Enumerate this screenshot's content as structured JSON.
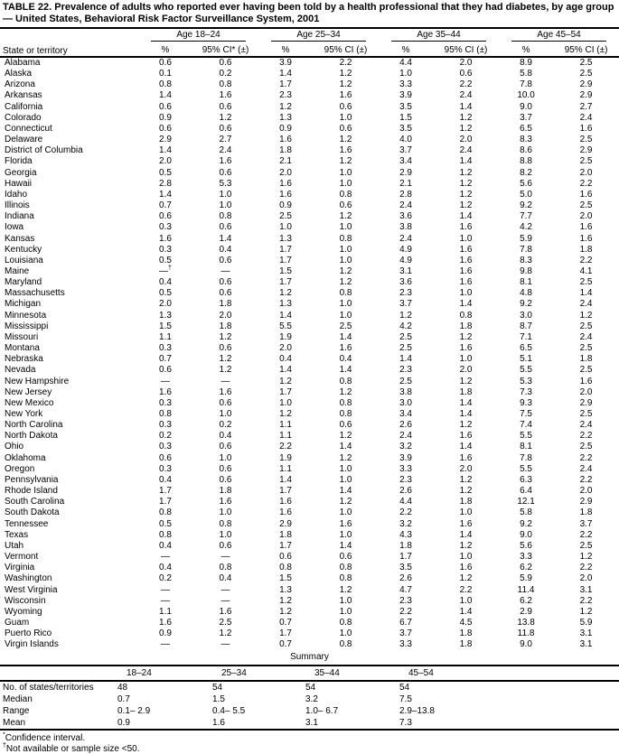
{
  "title": "TABLE 22. Prevalence of adults who reported ever having been told by a health professional that they had diabetes, by age group — United States, Behavioral Risk Factor Surveillance System, 2001",
  "table": {
    "row_header_label": "State or territory",
    "age_groups": [
      {
        "label": "Age 18–24",
        "pct_header": "%",
        "ci_header": "95% CI* (±)"
      },
      {
        "label": "Age 25–34",
        "pct_header": "%",
        "ci_header": "95% CI (±)"
      },
      {
        "label": "Age 35–44",
        "pct_header": "%",
        "ci_header": "95% CI (±)"
      },
      {
        "label": "Age 45–54",
        "pct_header": "%",
        "ci_header": "95% CI (±)"
      }
    ],
    "rows": [
      {
        "state": "Alabama",
        "values": [
          "0.6",
          "0.6",
          "3.9",
          "2.2",
          "4.4",
          "2.0",
          "8.9",
          "2.5"
        ]
      },
      {
        "state": "Alaska",
        "values": [
          "0.1",
          "0.2",
          "1.4",
          "1.2",
          "1.0",
          "0.6",
          "5.8",
          "2.5"
        ]
      },
      {
        "state": "Arizona",
        "values": [
          "0.8",
          "0.8",
          "1.7",
          "1.2",
          "3.3",
          "2.2",
          "7.8",
          "2.9"
        ]
      },
      {
        "state": "Arkansas",
        "values": [
          "1.4",
          "1.6",
          "2.3",
          "1.6",
          "3.9",
          "2.4",
          "10.0",
          "2.9"
        ]
      },
      {
        "state": "California",
        "values": [
          "0.6",
          "0.6",
          "1.2",
          "0.6",
          "3.5",
          "1.4",
          "9.0",
          "2.7"
        ]
      },
      {
        "state": "Colorado",
        "values": [
          "0.9",
          "1.2",
          "1.3",
          "1.0",
          "1.5",
          "1.2",
          "3.7",
          "2.4"
        ]
      },
      {
        "state": "Connecticut",
        "values": [
          "0.6",
          "0.6",
          "0.9",
          "0.6",
          "3.5",
          "1.2",
          "6.5",
          "1.6"
        ]
      },
      {
        "state": "Delaware",
        "values": [
          "2.9",
          "2.7",
          "1.6",
          "1.2",
          "4.0",
          "2.0",
          "8.3",
          "2.5"
        ]
      },
      {
        "state": "District of Columbia",
        "values": [
          "1.4",
          "2.4",
          "1.8",
          "1.6",
          "3.7",
          "2.4",
          "8.6",
          "2.9"
        ]
      },
      {
        "state": "Florida",
        "values": [
          "2.0",
          "1.6",
          "2.1",
          "1.2",
          "3.4",
          "1.4",
          "8.8",
          "2.5"
        ]
      },
      {
        "state": "Georgia",
        "values": [
          "0.5",
          "0.6",
          "2.0",
          "1.0",
          "2.9",
          "1.2",
          "8.2",
          "2.0"
        ]
      },
      {
        "state": "Hawaii",
        "values": [
          "2.8",
          "5.3",
          "1.6",
          "1.0",
          "2.1",
          "1.2",
          "5.6",
          "2.2"
        ]
      },
      {
        "state": "Idaho",
        "values": [
          "1.4",
          "1.0",
          "1.6",
          "0.8",
          "2.8",
          "1.2",
          "5.0",
          "1.6"
        ]
      },
      {
        "state": "Illinois",
        "values": [
          "0.7",
          "1.0",
          "0.9",
          "0.6",
          "2.4",
          "1.2",
          "9.2",
          "2.5"
        ]
      },
      {
        "state": "Indiana",
        "values": [
          "0.6",
          "0.8",
          "2.5",
          "1.2",
          "3.6",
          "1.4",
          "7.7",
          "2.0"
        ]
      },
      {
        "state": "Iowa",
        "values": [
          "0.3",
          "0.6",
          "1.0",
          "1.0",
          "3.8",
          "1.6",
          "4.2",
          "1.6"
        ]
      },
      {
        "state": "Kansas",
        "values": [
          "1.6",
          "1.4",
          "1.3",
          "0.8",
          "2.4",
          "1.0",
          "5.9",
          "1.6"
        ]
      },
      {
        "state": "Kentucky",
        "values": [
          "0.3",
          "0.4",
          "1.7",
          "1.0",
          "4.9",
          "1.6",
          "7.8",
          "1.8"
        ]
      },
      {
        "state": "Louisiana",
        "values": [
          "0.5",
          "0.6",
          "1.7",
          "1.0",
          "4.9",
          "1.6",
          "8.3",
          "2.2"
        ]
      },
      {
        "state": "Maine",
        "values": [
          "—†",
          "—",
          "1.5",
          "1.2",
          "3.1",
          "1.6",
          "9.8",
          "4.1"
        ]
      },
      {
        "state": "Maryland",
        "values": [
          "0.4",
          "0.6",
          "1.7",
          "1.2",
          "3.6",
          "1.6",
          "8.1",
          "2.5"
        ]
      },
      {
        "state": "Massachusetts",
        "values": [
          "0.5",
          "0.6",
          "1.2",
          "0.8",
          "2.3",
          "1.0",
          "4.8",
          "1.4"
        ]
      },
      {
        "state": "Michigan",
        "values": [
          "2.0",
          "1.8",
          "1.3",
          "1.0",
          "3.7",
          "1.4",
          "9.2",
          "2.4"
        ]
      },
      {
        "state": "Minnesota",
        "values": [
          "1.3",
          "2.0",
          "1.4",
          "1.0",
          "1.2",
          "0.8",
          "3.0",
          "1.2"
        ]
      },
      {
        "state": "Mississippi",
        "values": [
          "1.5",
          "1.8",
          "5.5",
          "2.5",
          "4.2",
          "1.8",
          "8.7",
          "2.5"
        ]
      },
      {
        "state": "Missouri",
        "values": [
          "1.1",
          "1.2",
          "1.9",
          "1.4",
          "2.5",
          "1.2",
          "7.1",
          "2.4"
        ]
      },
      {
        "state": "Montana",
        "values": [
          "0.3",
          "0.6",
          "2.0",
          "1.6",
          "2.5",
          "1.6",
          "6.5",
          "2.5"
        ]
      },
      {
        "state": "Nebraska",
        "values": [
          "0.7",
          "1.2",
          "0.4",
          "0.4",
          "1.4",
          "1.0",
          "5.1",
          "1.8"
        ]
      },
      {
        "state": "Nevada",
        "values": [
          "0.6",
          "1.2",
          "1.4",
          "1.4",
          "2.3",
          "2.0",
          "5.5",
          "2.5"
        ]
      },
      {
        "state": "New Hampshire",
        "values": [
          "—",
          "—",
          "1.2",
          "0.8",
          "2.5",
          "1.2",
          "5.3",
          "1.6"
        ]
      },
      {
        "state": "New Jersey",
        "values": [
          "1.6",
          "1.6",
          "1.7",
          "1.2",
          "3.8",
          "1.8",
          "7.3",
          "2.0"
        ]
      },
      {
        "state": "New Mexico",
        "values": [
          "0.3",
          "0.6",
          "1.0",
          "0.8",
          "3.0",
          "1.4",
          "9.3",
          "2.9"
        ]
      },
      {
        "state": "New York",
        "values": [
          "0.8",
          "1.0",
          "1.2",
          "0.8",
          "3.4",
          "1.4",
          "7.5",
          "2.5"
        ]
      },
      {
        "state": "North Carolina",
        "values": [
          "0.3",
          "0.2",
          "1.1",
          "0.6",
          "2.6",
          "1.2",
          "7.4",
          "2.4"
        ]
      },
      {
        "state": "North Dakota",
        "values": [
          "0.2",
          "0.4",
          "1.1",
          "1.2",
          "2.4",
          "1.6",
          "5.5",
          "2.2"
        ]
      },
      {
        "state": "Ohio",
        "values": [
          "0.3",
          "0.6",
          "2.2",
          "1.4",
          "3.2",
          "1.4",
          "8.1",
          "2.5"
        ]
      },
      {
        "state": "Oklahoma",
        "values": [
          "0.6",
          "1.0",
          "1.9",
          "1.2",
          "3.9",
          "1.6",
          "7.8",
          "2.2"
        ]
      },
      {
        "state": "Oregon",
        "values": [
          "0.3",
          "0.6",
          "1.1",
          "1.0",
          "3.3",
          "2.0",
          "5.5",
          "2.4"
        ]
      },
      {
        "state": "Pennsylvania",
        "values": [
          "0.4",
          "0.6",
          "1.4",
          "1.0",
          "2.3",
          "1.2",
          "6.3",
          "2.2"
        ]
      },
      {
        "state": "Rhode Island",
        "values": [
          "1.7",
          "1.8",
          "1.7",
          "1.4",
          "2.6",
          "1.2",
          "6.4",
          "2.0"
        ]
      },
      {
        "state": "South Carolina",
        "values": [
          "1.7",
          "1.6",
          "1.6",
          "1.2",
          "4.4",
          "1.8",
          "12.1",
          "2.9"
        ]
      },
      {
        "state": "South Dakota",
        "values": [
          "0.8",
          "1.0",
          "1.6",
          "1.0",
          "2.2",
          "1.0",
          "5.8",
          "1.8"
        ]
      },
      {
        "state": "Tennessee",
        "values": [
          "0.5",
          "0.8",
          "2.9",
          "1.6",
          "3.2",
          "1.6",
          "9.2",
          "3.7"
        ]
      },
      {
        "state": "Texas",
        "values": [
          "0.8",
          "1.0",
          "1.8",
          "1.0",
          "4.3",
          "1.4",
          "9.0",
          "2.2"
        ]
      },
      {
        "state": "Utah",
        "values": [
          "0.4",
          "0.6",
          "1.7",
          "1.4",
          "1.8",
          "1.2",
          "5.6",
          "2.5"
        ]
      },
      {
        "state": "Vermont",
        "values": [
          "—",
          "—",
          "0.6",
          "0.6",
          "1.7",
          "1.0",
          "3.3",
          "1.2"
        ]
      },
      {
        "state": "Virginia",
        "values": [
          "0.4",
          "0.8",
          "0.8",
          "0.8",
          "3.5",
          "1.6",
          "6.2",
          "2.2"
        ]
      },
      {
        "state": "Washington",
        "values": [
          "0.2",
          "0.4",
          "1.5",
          "0.8",
          "2.6",
          "1.2",
          "5.9",
          "2.0"
        ]
      },
      {
        "state": "West Virginia",
        "values": [
          "—",
          "—",
          "1.3",
          "1.2",
          "4.7",
          "2.2",
          "11.4",
          "3.1"
        ]
      },
      {
        "state": "Wisconsin",
        "values": [
          "—",
          "—",
          "1.2",
          "1.0",
          "2.3",
          "1.0",
          "6.2",
          "2.2"
        ]
      },
      {
        "state": "Wyoming",
        "values": [
          "1.1",
          "1.6",
          "1.2",
          "1.0",
          "2.2",
          "1.4",
          "2.9",
          "1.2"
        ]
      },
      {
        "state": "Guam",
        "values": [
          "1.6",
          "2.5",
          "0.7",
          "0.8",
          "6.7",
          "4.5",
          "13.8",
          "5.9"
        ]
      },
      {
        "state": "Puerto Rico",
        "values": [
          "0.9",
          "1.2",
          "1.7",
          "1.0",
          "3.7",
          "1.8",
          "11.8",
          "3.1"
        ]
      },
      {
        "state": "Virgin Islands",
        "values": [
          "—",
          "—",
          "0.7",
          "0.8",
          "3.3",
          "1.8",
          "9.0",
          "3.1"
        ]
      }
    ]
  },
  "summary": {
    "section_label": "Summary",
    "col_headers": [
      "18–24",
      "25–34",
      "35–44",
      "45–54"
    ],
    "rows": [
      {
        "label": "No. of states/territories",
        "values": [
          "48",
          "54",
          "54",
          "54"
        ]
      },
      {
        "label": "Median",
        "values": [
          "0.7",
          "1.5",
          "3.2",
          "7.5"
        ]
      },
      {
        "label": "Range",
        "values": [
          "0.1– 2.9",
          "0.4– 5.5",
          "1.0– 6.7",
          "2.9–13.8"
        ]
      },
      {
        "label": "Mean",
        "values": [
          "0.9",
          "1.6",
          "3.1",
          "7.3"
        ]
      }
    ]
  },
  "footnotes": [
    {
      "marker": "*",
      "text": "Confidence interval."
    },
    {
      "marker": "†",
      "text": "Not available or sample size <50."
    }
  ]
}
